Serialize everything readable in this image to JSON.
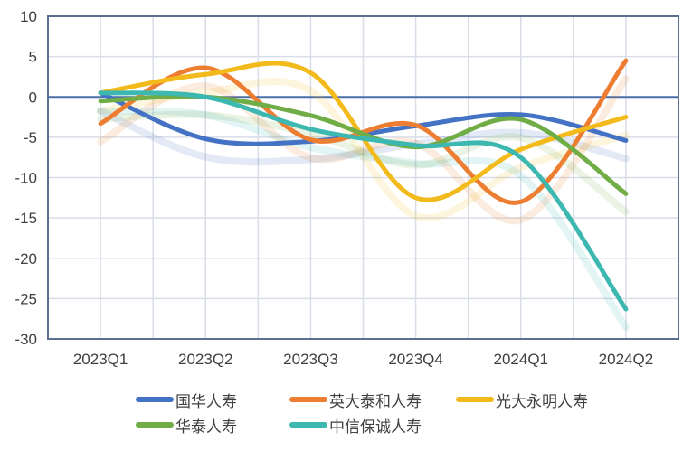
{
  "chart_data": {
    "type": "line",
    "title": "",
    "xlabel": "",
    "ylabel": "",
    "ylim": [
      -30,
      10
    ],
    "yticks": [
      10,
      5,
      0,
      -5,
      -10,
      -15,
      -20,
      -25,
      -30
    ],
    "grid": true,
    "smooth": true,
    "legend_position": "bottom",
    "categories": [
      "2023Q1",
      "2023Q2",
      "2023Q3",
      "2023Q4",
      "2024Q1",
      "2024Q2"
    ],
    "series": [
      {
        "name": "国华人寿",
        "color": "#4472C4",
        "values": [
          0.5,
          -5.2,
          -5.5,
          -3.6,
          -2.2,
          -5.4
        ]
      },
      {
        "name": "英大泰和人寿",
        "color": "#ED7D31",
        "values": [
          -3.3,
          3.6,
          -5.3,
          -3.5,
          -13.0,
          4.5
        ]
      },
      {
        "name": "光大永明人寿",
        "color": "#F2BA1A",
        "values": [
          0.5,
          2.8,
          3.0,
          -12.5,
          -6.5,
          -2.5
        ]
      },
      {
        "name": "华泰人寿",
        "color": "#70AD47",
        "values": [
          -0.5,
          0.0,
          -2.3,
          -6.2,
          -2.8,
          -12.0
        ]
      },
      {
        "name": "中信保诚人寿",
        "color": "#3CB8B0",
        "values": [
          0.5,
          0.0,
          -4.0,
          -6.0,
          -7.5,
          -26.3
        ]
      }
    ]
  }
}
